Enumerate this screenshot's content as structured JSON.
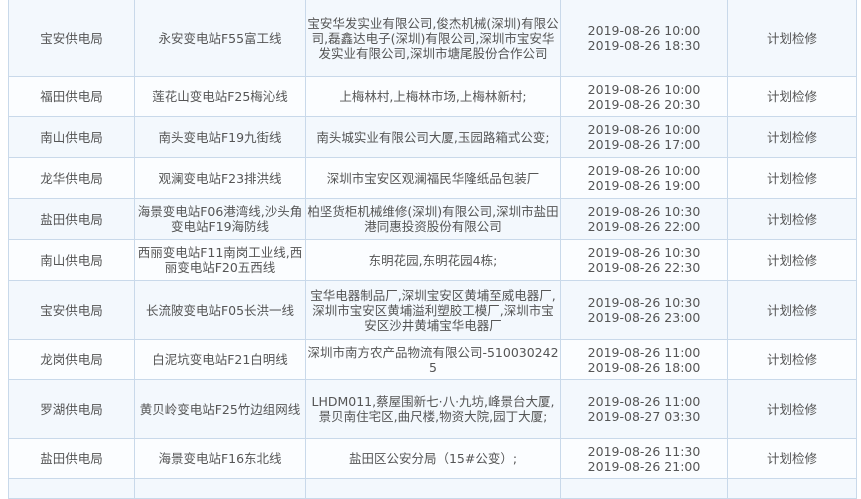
{
  "rows": [
    {
      "bureau": "宝安供电局",
      "line": "永安变电站F55富工线",
      "area": "宝安华发实业有限公司,俊杰机械(深圳)有限公司,磊鑫达电子(深圳)有限公司,深圳市宝安华发实业有限公司,深圳市塘尾股份合作公司",
      "start": "2019-08-26 10:00",
      "end": "2019-08-26 18:30",
      "type": "计划检修"
    },
    {
      "bureau": "福田供电局",
      "line": "莲花山变电站F25梅沁线",
      "area": "上梅林村,上梅林市场,上梅林新村;",
      "start": "2019-08-26 10:00",
      "end": "2019-08-26 20:30",
      "type": "计划检修"
    },
    {
      "bureau": "南山供电局",
      "line": "南头变电站F19九街线",
      "area": "南头城实业有限公司大厦,玉园路箱式公变;",
      "start": "2019-08-26 10:00",
      "end": "2019-08-26 17:00",
      "type": "计划检修"
    },
    {
      "bureau": "龙华供电局",
      "line": "观澜变电站F23排洪线",
      "area": "深圳市宝安区观澜福民华隆纸品包装厂",
      "start": "2019-08-26 10:00",
      "end": "2019-08-26 19:00",
      "type": "计划检修"
    },
    {
      "bureau": "盐田供电局",
      "line": "海景变电站F06港湾线,沙头角变电站F19海防线",
      "area": "柏坚货柜机械维修(深圳)有限公司,深圳市盐田港同惠投资股份有限公司",
      "start": "2019-08-26 10:30",
      "end": "2019-08-26 22:00",
      "type": "计划检修"
    },
    {
      "bureau": "南山供电局",
      "line": "西丽变电站F11南岗工业线,西丽变电站F20五西线",
      "area": "东明花园,东明花园4栋;",
      "start": "2019-08-26 10:30",
      "end": "2019-08-26 22:30",
      "type": "计划检修"
    },
    {
      "bureau": "宝安供电局",
      "line": "长流陂变电站F05长洪一线",
      "area": "宝华电器制品厂,深圳宝安区黄埔至威电器厂,深圳市宝安区黄埔溢利塑胶工模厂,深圳市宝安区沙井黄埔宝华电器厂",
      "start": "2019-08-26 10:30",
      "end": "2019-08-26 23:00",
      "type": "计划检修"
    },
    {
      "bureau": "龙岗供电局",
      "line": "白泥坑变电站F21白明线",
      "area": "深圳市南方农产品物流有限公司-5100302425",
      "start": "2019-08-26 11:00",
      "end": "2019-08-26 18:00",
      "type": "计划检修"
    },
    {
      "bureau": "罗湖供电局",
      "line": "黄贝岭变电站F25竹边组网线",
      "area": "LHDM011,蔡屋围新七·八·九坊,峰景台大厦,景贝南住宅区,曲尺楼,物资大院,园丁大厦;",
      "start": "2019-08-26 11:00",
      "end": "2019-08-27 03:30",
      "type": "计划检修"
    },
    {
      "bureau": "盐田供电局",
      "line": "海景变电站F16东北线",
      "area": "盐田区公安分局（15#公变）;",
      "start": "2019-08-26 11:30",
      "end": "2019-08-26 21:00",
      "type": "计划检修"
    }
  ]
}
